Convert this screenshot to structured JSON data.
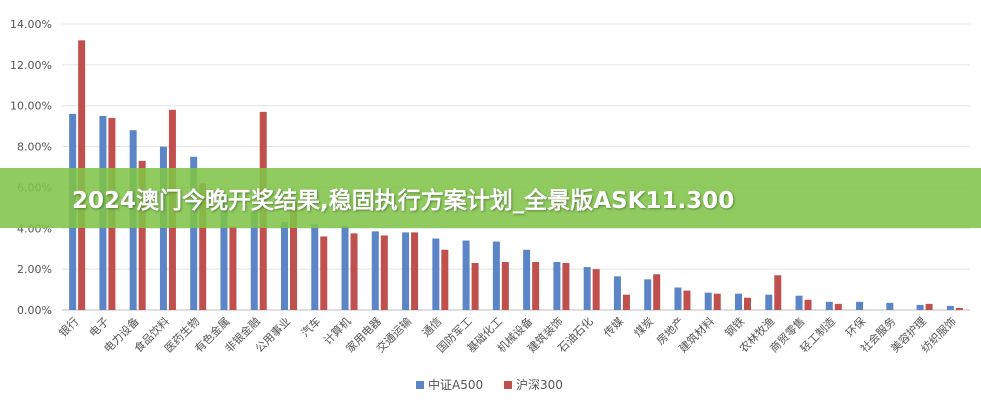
{
  "banner": {
    "title": "2024澳门今晚开奖结果,稳固执行方案计划_全景版ASK11.300"
  },
  "chart_data": {
    "type": "bar",
    "title": "",
    "xlabel": "",
    "ylabel": "",
    "ylim": [
      0,
      14
    ],
    "yticks": [
      "0.00%",
      "2.00%",
      "4.00%",
      "6.00%",
      "8.00%",
      "10.00%",
      "12.00%",
      "14.00%"
    ],
    "grid": true,
    "legend_position": "bottom",
    "categories": [
      "银行",
      "电子",
      "电力设备",
      "食品饮料",
      "医药生物",
      "有色金属",
      "非银金融",
      "公用事业",
      "汽车",
      "计算机",
      "家用电器",
      "交通运输",
      "通信",
      "国防军工",
      "基础化工",
      "机械设备",
      "建筑装饰",
      "石油石化",
      "传媒",
      "煤炭",
      "房地产",
      "建筑材料",
      "钢铁",
      "农林牧渔",
      "商贸零售",
      "轻工制造",
      "环保",
      "社会服务",
      "美容护理",
      "纺织服饰"
    ],
    "series": [
      {
        "name": "中证A500",
        "color": "#5b85c6",
        "values": [
          9.6,
          9.5,
          8.8,
          8.0,
          7.5,
          5.6,
          4.8,
          4.3,
          4.2,
          4.1,
          3.85,
          3.8,
          3.5,
          3.4,
          3.35,
          2.95,
          2.35,
          2.1,
          1.65,
          1.5,
          1.1,
          0.85,
          0.8,
          0.75,
          0.7,
          0.4,
          0.4,
          0.35,
          0.25,
          0.2
        ]
      },
      {
        "name": "沪深300",
        "color": "#c0504d",
        "values": [
          13.2,
          9.4,
          7.3,
          9.8,
          6.2,
          4.1,
          9.7,
          5.3,
          3.6,
          3.75,
          3.65,
          3.8,
          2.95,
          2.3,
          2.35,
          2.35,
          2.3,
          2.0,
          0.75,
          1.75,
          0.95,
          0.8,
          0.6,
          1.7,
          0.5,
          0.3,
          0.0,
          0.0,
          0.3,
          0.1
        ]
      }
    ]
  }
}
